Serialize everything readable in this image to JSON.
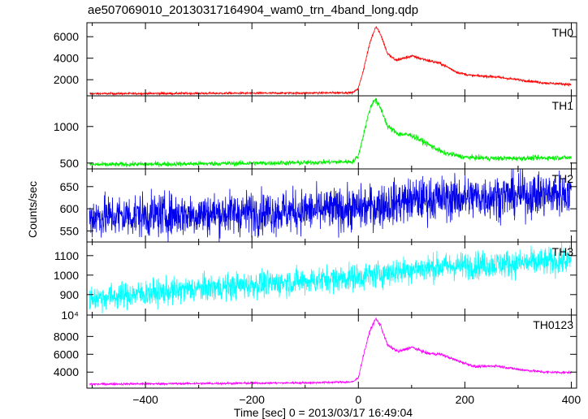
{
  "chart_data": {
    "type": "line",
    "title": "ae507069010_20130317164904_wam0_trn_4band_long.qdp",
    "xlabel": "Time [sec] 0 = 2013/03/17 16:49:04",
    "ylabel": "Counts/sec",
    "xlim": [
      -510,
      410
    ],
    "x_ticks": [
      -400,
      -200,
      0,
      200,
      400
    ],
    "x_tick_labels": [
      "−400",
      "−200",
      "0",
      "200",
      "400"
    ],
    "series": [
      {
        "name": "TH0",
        "color": "#ff0000",
        "ylim": [
          500,
          7300
        ],
        "y_ticks": [
          2000,
          4000,
          6000
        ],
        "y_tick_labels": [
          "2000",
          "4000",
          "6000"
        ],
        "noise": 60,
        "noise_scale": 0.04,
        "profile": [
          [
            -505,
            700
          ],
          [
            -300,
            730
          ],
          [
            -100,
            760
          ],
          [
            -10,
            800
          ],
          [
            0,
            1200
          ],
          [
            10,
            3000
          ],
          [
            22,
            5500
          ],
          [
            33,
            7000
          ],
          [
            42,
            6200
          ],
          [
            55,
            4400
          ],
          [
            70,
            3800
          ],
          [
            100,
            4200
          ],
          [
            130,
            3800
          ],
          [
            155,
            3500
          ],
          [
            185,
            2700
          ],
          [
            210,
            2400
          ],
          [
            250,
            2300
          ],
          [
            300,
            2000
          ],
          [
            350,
            1700
          ],
          [
            400,
            1550
          ]
        ]
      },
      {
        "name": "TH1",
        "color": "#00ee00",
        "ylim": [
          420,
          1420
        ],
        "y_ticks": [
          500,
          1000
        ],
        "y_tick_labels": [
          "500",
          "1000"
        ],
        "noise": 18,
        "noise_scale": 0.04,
        "profile": [
          [
            -505,
            478
          ],
          [
            -300,
            490
          ],
          [
            -100,
            505
          ],
          [
            -10,
            520
          ],
          [
            0,
            600
          ],
          [
            10,
            900
          ],
          [
            20,
            1200
          ],
          [
            30,
            1380
          ],
          [
            42,
            1250
          ],
          [
            55,
            1000
          ],
          [
            75,
            900
          ],
          [
            100,
            880
          ],
          [
            130,
            760
          ],
          [
            160,
            640
          ],
          [
            200,
            580
          ],
          [
            250,
            565
          ],
          [
            300,
            565
          ],
          [
            350,
            570
          ],
          [
            400,
            575
          ]
        ]
      },
      {
        "name": "TH2",
        "color": "#0000ee",
        "ylim": [
          525,
          690
        ],
        "y_ticks": [
          550,
          600,
          650
        ],
        "y_tick_labels": [
          "550",
          "600",
          "650"
        ],
        "noise": 24,
        "noise_scale": 0.07,
        "profile": [
          [
            -505,
            582
          ],
          [
            -300,
            588
          ],
          [
            -100,
            595
          ],
          [
            0,
            600
          ],
          [
            100,
            620
          ],
          [
            200,
            625
          ],
          [
            300,
            630
          ],
          [
            400,
            635
          ]
        ]
      },
      {
        "name": "TH3",
        "color": "#00ffff",
        "ylim": [
          795,
          1170
        ],
        "y_ticks": [
          900,
          1000,
          1100
        ],
        "y_tick_labels": [
          "900",
          "1000",
          "1100"
        ],
        "noise": 34,
        "noise_scale": 0.06,
        "profile": [
          [
            -505,
            880
          ],
          [
            -300,
            930
          ],
          [
            -100,
            970
          ],
          [
            0,
            990
          ],
          [
            100,
            1030
          ],
          [
            200,
            1050
          ],
          [
            300,
            1060
          ],
          [
            400,
            1075
          ]
        ]
      },
      {
        "name": "TH0123",
        "color": "#ff00ff",
        "ylim": [
          2200,
          10400
        ],
        "y_ticks": [
          4000,
          6000,
          8000
        ],
        "y_tick_labels": [
          "4000",
          "6000",
          "8000"
        ],
        "y_top_label": "10⁴",
        "noise": 60,
        "noise_scale": 0.04,
        "profile": [
          [
            -505,
            2650
          ],
          [
            -300,
            2720
          ],
          [
            -100,
            2800
          ],
          [
            -10,
            2900
          ],
          [
            0,
            3400
          ],
          [
            10,
            6000
          ],
          [
            22,
            8700
          ],
          [
            33,
            10000
          ],
          [
            42,
            9200
          ],
          [
            55,
            7000
          ],
          [
            75,
            6300
          ],
          [
            100,
            6800
          ],
          [
            130,
            6100
          ],
          [
            155,
            6000
          ],
          [
            185,
            5300
          ],
          [
            220,
            4600
          ],
          [
            260,
            4700
          ],
          [
            300,
            4300
          ],
          [
            350,
            4000
          ],
          [
            400,
            3950
          ]
        ]
      }
    ]
  }
}
